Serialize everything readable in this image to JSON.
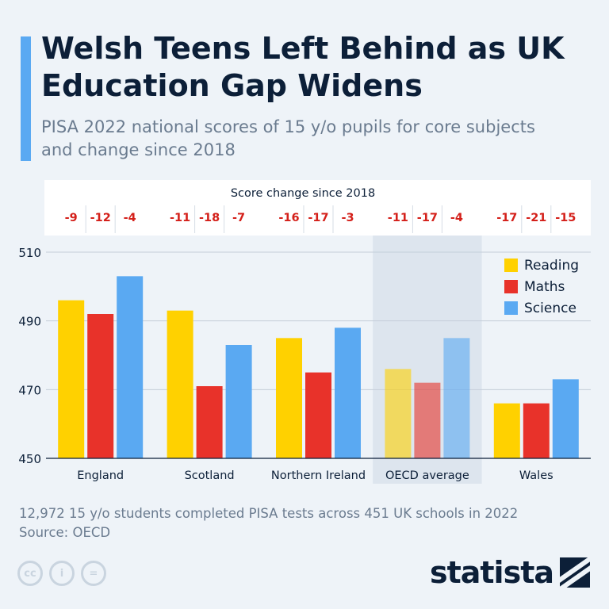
{
  "header": {
    "title": "Welsh Teens Left Behind as UK Education Gap Widens",
    "subtitle": "PISA 2022 national scores of 15 y/o pupils for core subjects and change since 2018"
  },
  "change_header": "Score change since 2018",
  "chart_data": {
    "type": "bar",
    "categories": [
      "England",
      "Scotland",
      "Northern Ireland",
      "OECD average",
      "Wales"
    ],
    "series": [
      {
        "name": "Reading",
        "color": "#ffd100",
        "values": [
          496,
          493,
          485,
          476,
          466
        ],
        "change": [
          "-9",
          "-11",
          "-16",
          "-11",
          "-17"
        ]
      },
      {
        "name": "Maths",
        "color": "#e8322a",
        "values": [
          492,
          471,
          475,
          472,
          466
        ],
        "change": [
          "-12",
          "-18",
          "-17",
          "-17",
          "-21"
        ]
      },
      {
        "name": "Science",
        "color": "#5aa9f2",
        "values": [
          503,
          483,
          488,
          485,
          473
        ],
        "change": [
          "-4",
          "-7",
          "-3",
          "-4",
          "-15"
        ]
      }
    ],
    "ylim": [
      450,
      510
    ],
    "yticks": [
      "450",
      "470",
      "490",
      "510"
    ],
    "highlight_category": "OECD average",
    "legend_position": "top-right",
    "grid": true
  },
  "footer": {
    "note": "12,972 15 y/o students completed PISA tests across 451 UK schools in 2022",
    "source": "Source: OECD",
    "license_icons": [
      "creative-commons-icon",
      "attribution-icon",
      "no-derivatives-icon"
    ],
    "license_glyphs": [
      "cc",
      "i",
      "="
    ],
    "brand": "statista"
  }
}
